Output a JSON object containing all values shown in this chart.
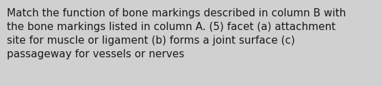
{
  "text": "Match the function of bone markings described in column B with\nthe bone markings listed in column A. (5) facet (a) attachment\nsite for muscle or ligament (b) forms a joint surface (c)\npassageway for vessels or nerves",
  "background_color": "#d0d0d0",
  "text_color": "#1a1a1a",
  "font_size": 11.0,
  "figwidth": 5.58,
  "figheight": 1.26,
  "dpi": 100
}
